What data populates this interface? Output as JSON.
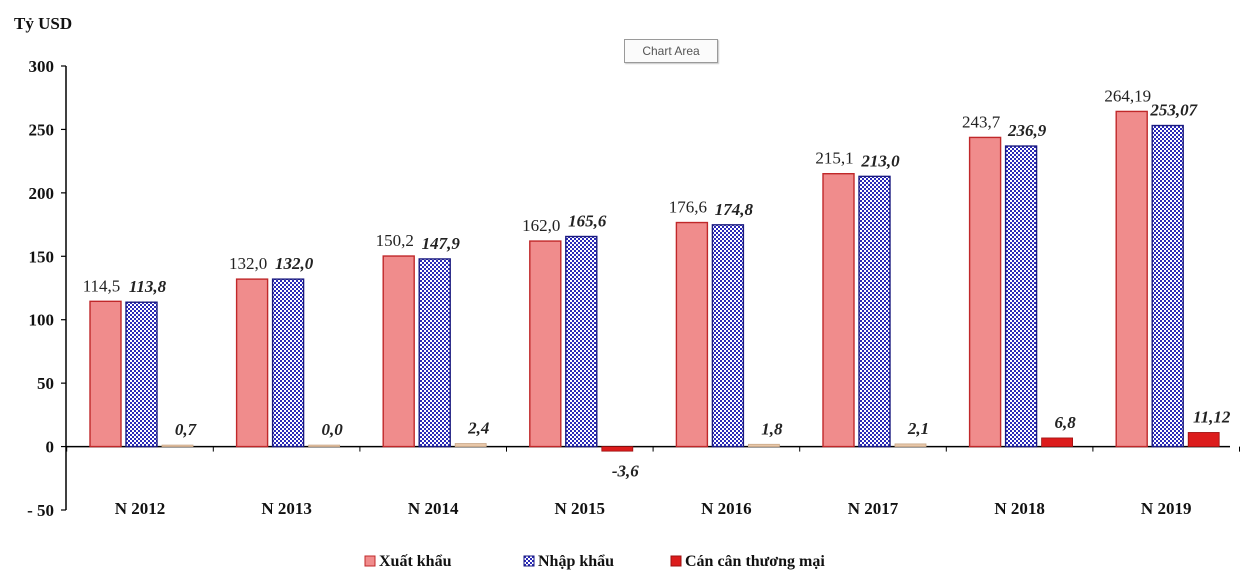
{
  "tooltip": {
    "text": "Chart Area"
  },
  "chart_data": {
    "type": "bar",
    "ylabel": "Tỷ USD",
    "xlabel": "",
    "ylim": [
      -50,
      300
    ],
    "yticks": [
      "300",
      "250",
      "200",
      "150",
      "100",
      "50",
      "0",
      "- 50"
    ],
    "ytick_values": [
      300,
      250,
      200,
      150,
      100,
      50,
      0,
      -50
    ],
    "grid": false,
    "legend_position": "bottom",
    "categories": [
      "N 2012",
      "N 2013",
      "N 2014",
      "N 2015",
      "N 2016",
      "N 2017",
      "N 2018",
      "N 2019"
    ],
    "series": [
      {
        "name": "Xuất khẩu",
        "values": [
          114.5,
          132.0,
          150.2,
          162.0,
          176.6,
          215.1,
          243.7,
          264.19
        ],
        "labels": [
          "114,5",
          "132,0",
          "150,2",
          "162,0",
          "176,6",
          "215,1",
          "243,7",
          "264,19"
        ],
        "color": "#f08c8c",
        "border": "#c0282a"
      },
      {
        "name": "Nhập khẩu",
        "values": [
          113.8,
          132.0,
          147.9,
          165.6,
          174.8,
          213.0,
          236.9,
          253.07
        ],
        "labels": [
          "113,8",
          "132,0",
          "147,9",
          "165,6",
          "174,8",
          "213,0",
          "236,9",
          "253,07"
        ],
        "color": "#2a2ab8",
        "border": "#1a1a80"
      },
      {
        "name": "Cán cân thương mại",
        "values": [
          0.7,
          0.0,
          2.4,
          -3.6,
          1.8,
          2.1,
          6.8,
          11.12
        ],
        "labels": [
          "0,7",
          "0,0",
          "2,4",
          "-3,6",
          "1,8",
          "2,1",
          "6,8",
          "11,12"
        ],
        "color": "#dc1c1c",
        "small_color": "#e8c7a8"
      }
    ]
  }
}
